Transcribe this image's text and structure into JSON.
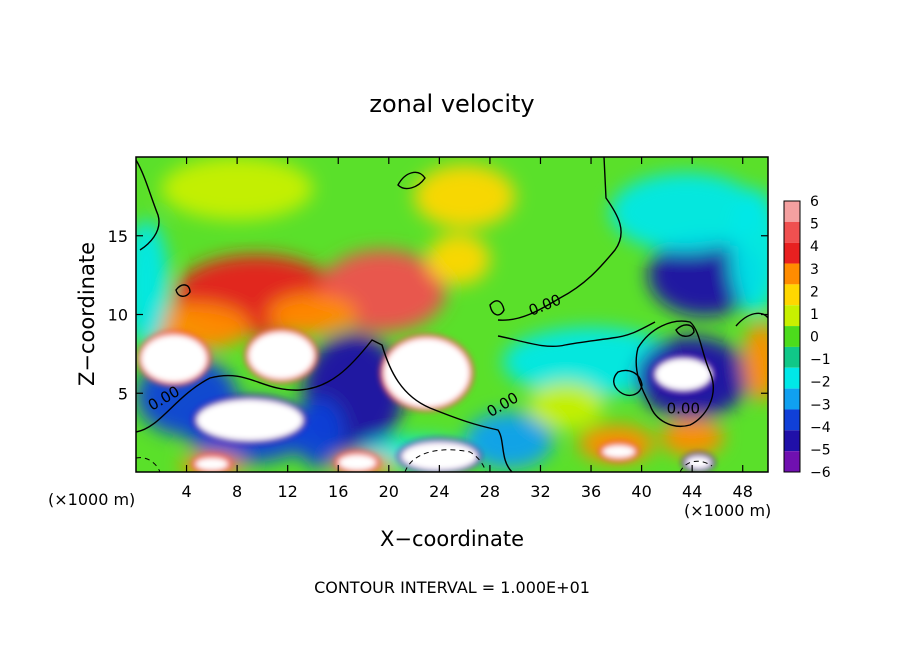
{
  "chart_data": {
    "type": "heatmap",
    "title": "zonal velocity",
    "xlabel": "X−coordinate",
    "ylabel": "Z−coordinate",
    "x_unit_left": "(×1000 m)",
    "x_unit_right": "(×1000 m)",
    "xlim": [
      0,
      50
    ],
    "ylim": [
      0,
      20
    ],
    "x_ticks": [
      4,
      8,
      12,
      16,
      20,
      24,
      28,
      32,
      36,
      40,
      44,
      48
    ],
    "y_ticks": [
      5,
      10,
      15
    ],
    "colorbar": {
      "range": [
        -6,
        6
      ],
      "levels": [
        {
          "label": "6",
          "color": "#f4a0a0"
        },
        {
          "label": "5",
          "color": "#f05050"
        },
        {
          "label": "4",
          "color": "#e82020"
        },
        {
          "label": "3",
          "color": "#ff8c00"
        },
        {
          "label": "2",
          "color": "#ffd700"
        },
        {
          "label": "1",
          "color": "#c8f000"
        },
        {
          "label": "0",
          "color": "#4cdc1c"
        },
        {
          "label": "−1",
          "color": "#10c888"
        },
        {
          "label": "−2",
          "color": "#00e8e8"
        },
        {
          "label": "−3",
          "color": "#10a0f0"
        },
        {
          "label": "−4",
          "color": "#1040d8"
        },
        {
          "label": "−5",
          "color": "#2010a8"
        },
        {
          "label": "−6",
          "color": "#7010b0"
        }
      ]
    },
    "contour_labels": [
      {
        "text": "0.00",
        "x": 32.5,
        "y": 10.3,
        "rotate": -22
      },
      {
        "text": "0.00",
        "x": 2.4,
        "y": 4.4,
        "rotate": -30
      },
      {
        "text": "0.00",
        "x": 29.2,
        "y": 4.0,
        "rotate": -30
      },
      {
        "text": "0.00",
        "x": 43.3,
        "y": 3.7,
        "rotate": 0
      }
    ],
    "field_blobs": [
      {
        "x": 9.5,
        "y": 11.2,
        "rx": 6.5,
        "ry": 2.6,
        "value": 4.2
      },
      {
        "x": 19.5,
        "y": 11.5,
        "rx": 5.0,
        "ry": 2.6,
        "value": 4.6
      },
      {
        "x": 14.0,
        "y": 10.0,
        "rx": 3.5,
        "ry": 1.3,
        "value": 2.6
      },
      {
        "x": 4.5,
        "y": 9.2,
        "rx": 4.5,
        "ry": 1.5,
        "value": 3.0
      },
      {
        "x": 26.0,
        "y": 17.5,
        "rx": 4.0,
        "ry": 2.0,
        "value": 2.0
      },
      {
        "x": 25.5,
        "y": 13.5,
        "rx": 2.5,
        "ry": 1.6,
        "value": 2.0
      },
      {
        "x": 8.0,
        "y": 18.0,
        "rx": 6.0,
        "ry": 2.0,
        "value": 0.9
      },
      {
        "x": 45.0,
        "y": 12.5,
        "rx": 4.5,
        "ry": 2.6,
        "value": -5.0
      },
      {
        "x": 43.5,
        "y": 16.5,
        "rx": 6.0,
        "ry": 2.5,
        "value": -2.4
      },
      {
        "x": 49.0,
        "y": 14.0,
        "rx": 2.0,
        "ry": 4.0,
        "value": -2.4
      },
      {
        "x": 36.0,
        "y": 7.0,
        "rx": 7.0,
        "ry": 2.2,
        "value": -1.8
      },
      {
        "x": 17.2,
        "y": 5.0,
        "rx": 4.0,
        "ry": 3.8,
        "value": -4.5
      },
      {
        "x": 4.0,
        "y": 4.8,
        "rx": 4.0,
        "ry": 2.5,
        "value": -4.2
      },
      {
        "x": 9.0,
        "y": 2.6,
        "rx": 5.0,
        "ry": 2.0,
        "value": -4.0
      },
      {
        "x": 44.0,
        "y": 6.0,
        "rx": 4.5,
        "ry": 2.6,
        "value": -4.8
      },
      {
        "x": 29.5,
        "y": 2.0,
        "rx": 3.5,
        "ry": 1.8,
        "value": -3.0
      },
      {
        "x": 14.5,
        "y": 2.5,
        "rx": 2.0,
        "ry": 2.2,
        "value": -3.5
      },
      {
        "x": 38.0,
        "y": 1.8,
        "rx": 3.0,
        "ry": 1.2,
        "value": 3.5
      },
      {
        "x": 44.0,
        "y": 2.2,
        "rx": 2.5,
        "ry": 1.2,
        "value": 3.5
      },
      {
        "x": 49.5,
        "y": 7.0,
        "rx": 1.5,
        "ry": 2.5,
        "value": 3.0
      },
      {
        "x": 34.0,
        "y": 4.2,
        "rx": 3.0,
        "ry": 1.5,
        "value": 1.2
      },
      {
        "x": 0.8,
        "y": 12.0,
        "rx": 1.8,
        "ry": 4.0,
        "value": -2.0
      },
      {
        "x": 22.0,
        "y": 1.2,
        "rx": 4.5,
        "ry": 1.0,
        "value": -2.0
      },
      {
        "x": 6.0,
        "y": 0.4,
        "rx": 2.5,
        "ry": 0.8,
        "value": 3.2
      },
      {
        "x": 18.0,
        "y": 0.4,
        "rx": 2.5,
        "ry": 0.7,
        "value": 3.2
      }
    ],
    "saturated_regions": [
      {
        "x": 3.0,
        "y": 7.2,
        "rx": 2.6,
        "ry": 1.5,
        "sign": "positive"
      },
      {
        "x": 11.5,
        "y": 7.4,
        "rx": 2.6,
        "ry": 1.5,
        "sign": "positive"
      },
      {
        "x": 23.0,
        "y": 6.3,
        "rx": 3.4,
        "ry": 2.2,
        "sign": "positive"
      },
      {
        "x": 9.0,
        "y": 3.3,
        "rx": 4.2,
        "ry": 1.3,
        "sign": "negative"
      },
      {
        "x": 43.3,
        "y": 6.2,
        "rx": 2.2,
        "ry": 1.0,
        "sign": "negative"
      },
      {
        "x": 24.0,
        "y": 1.0,
        "rx": 3.0,
        "ry": 0.9,
        "sign": "negative"
      },
      {
        "x": 17.5,
        "y": 0.6,
        "rx": 1.5,
        "ry": 0.5,
        "sign": "positive"
      },
      {
        "x": 6.0,
        "y": 0.5,
        "rx": 1.3,
        "ry": 0.4,
        "sign": "positive"
      },
      {
        "x": 38.2,
        "y": 1.3,
        "rx": 1.3,
        "ry": 0.4,
        "sign": "positive"
      },
      {
        "x": 44.5,
        "y": 0.6,
        "rx": 1.0,
        "ry": 0.4,
        "sign": "negative"
      }
    ],
    "footer": "CONTOUR INTERVAL = 1.000E+01"
  }
}
